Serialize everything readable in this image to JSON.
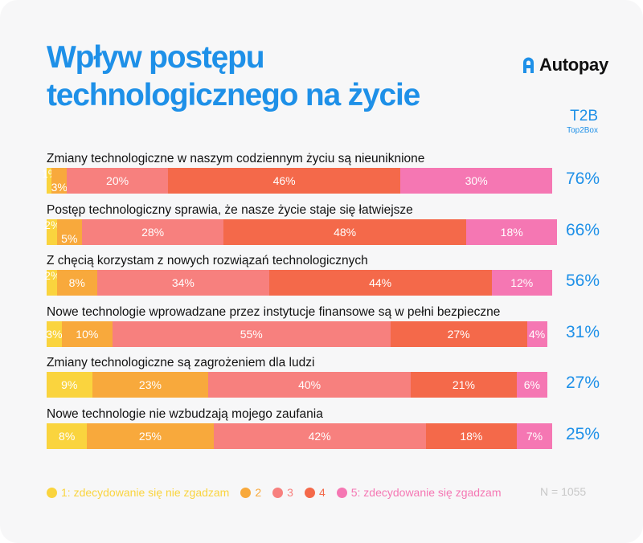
{
  "title_lines": [
    "Wpływ postępu",
    "technologicznego na życie"
  ],
  "brand": "Autopay",
  "t2b_label": "T2B",
  "t2b_sublabel": "Top2Box",
  "colors": [
    "#fad43e",
    "#f8a93c",
    "#f7807e",
    "#f4694a",
    "#f577b3"
  ],
  "legend": [
    "1: zdecydowanie się nie zgadzam",
    "2",
    "3",
    "4",
    "5: zdecydowanie się zgadzam"
  ],
  "n_label": "N = 1055",
  "chart_data": {
    "type": "bar",
    "orientation": "horizontal",
    "stacked": true,
    "percent_total": 100,
    "categories": [
      "Zmiany technologiczne w naszym codziennym życiu są nieuniknione",
      "Postęp technologiczny sprawia, że nasze życie staje się łatwiejsze",
      "Z chęcią korzystam z nowych rozwiązań technologicznych",
      "Nowe technologie wprowadzane przez instytucje finansowe są w pełni bezpieczne",
      "Zmiany technologiczne są zagrożeniem dla ludzi",
      "Nowe technologie nie wzbudzają mojego zaufania"
    ],
    "series": [
      {
        "name": "1: zdecydowanie się nie zgadzam",
        "values": [
          1,
          2,
          2,
          3,
          9,
          8
        ]
      },
      {
        "name": "2",
        "values": [
          3,
          5,
          8,
          10,
          23,
          25
        ]
      },
      {
        "name": "3",
        "values": [
          20,
          28,
          34,
          55,
          40,
          42
        ]
      },
      {
        "name": "4",
        "values": [
          46,
          48,
          44,
          27,
          21,
          18
        ]
      },
      {
        "name": "5: zdecydowanie się zgadzam",
        "values": [
          30,
          18,
          12,
          4,
          6,
          7
        ]
      }
    ],
    "t2b": [
      "76%",
      "66%",
      "56%",
      "31%",
      "27%",
      "25%"
    ],
    "legend_position": "bottom"
  }
}
